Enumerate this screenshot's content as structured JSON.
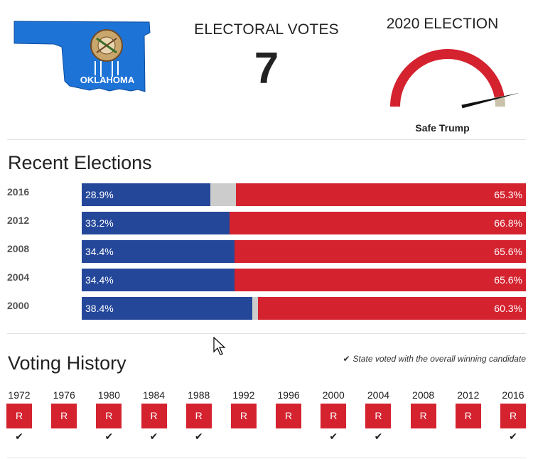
{
  "header": {
    "map_label": "OKLAHOMA",
    "electoral_title": "ELECTORAL VOTES",
    "electoral_votes": "7",
    "election_title": "2020 ELECTION",
    "rating": "Safe Trump",
    "gauge_value": 0.94,
    "colors": {
      "rep": "#d4222f",
      "dem": "#24479a",
      "tossup": "#c9c1aa",
      "flag_blue": "#1e73d6"
    }
  },
  "recent": {
    "title": "Recent Elections",
    "rows": [
      {
        "year": "2016",
        "dem": 28.9,
        "rep": 65.3,
        "dem_label": "28.9%",
        "rep_label": "65.3%"
      },
      {
        "year": "2012",
        "dem": 33.2,
        "rep": 66.8,
        "dem_label": "33.2%",
        "rep_label": "66.8%"
      },
      {
        "year": "2008",
        "dem": 34.4,
        "rep": 65.6,
        "dem_label": "34.4%",
        "rep_label": "65.6%"
      },
      {
        "year": "2004",
        "dem": 34.4,
        "rep": 65.6,
        "dem_label": "34.4%",
        "rep_label": "65.6%"
      },
      {
        "year": "2000",
        "dem": 38.4,
        "rep": 60.3,
        "dem_label": "38.4%",
        "rep_label": "60.3%"
      }
    ]
  },
  "history": {
    "title": "Voting History",
    "legend": "State voted with the overall winning candidate",
    "items": [
      {
        "year": "1972",
        "party": "R",
        "winner": true
      },
      {
        "year": "1976",
        "party": "R",
        "winner": false
      },
      {
        "year": "1980",
        "party": "R",
        "winner": true
      },
      {
        "year": "1984",
        "party": "R",
        "winner": true
      },
      {
        "year": "1988",
        "party": "R",
        "winner": true
      },
      {
        "year": "1992",
        "party": "R",
        "winner": false
      },
      {
        "year": "1996",
        "party": "R",
        "winner": false
      },
      {
        "year": "2000",
        "party": "R",
        "winner": true
      },
      {
        "year": "2004",
        "party": "R",
        "winner": true
      },
      {
        "year": "2008",
        "party": "R",
        "winner": false
      },
      {
        "year": "2012",
        "party": "R",
        "winner": false
      },
      {
        "year": "2016",
        "party": "R",
        "winner": true
      }
    ]
  }
}
